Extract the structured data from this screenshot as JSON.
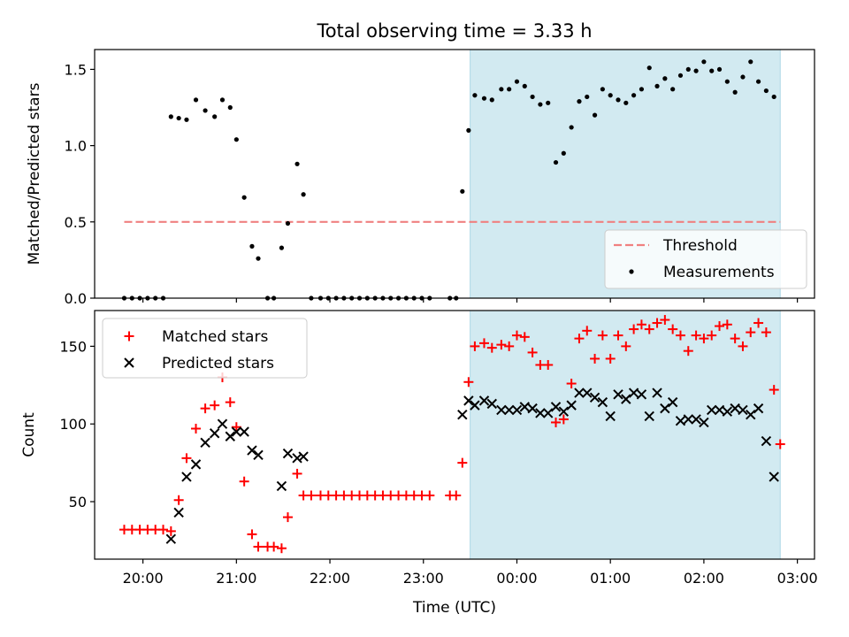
{
  "chart_data": [
    {
      "type": "scatter",
      "title": "Total observing time = 3.33 h",
      "xlabel": "",
      "ylabel": "Matched/Predicted stars",
      "ylim": [
        0,
        1.63
      ],
      "yticks": [
        "0.0",
        "0.5",
        "1.0",
        "1.5"
      ],
      "shaded_region": {
        "x_start": "23:30",
        "x_end": "02:49",
        "color": "#add8e6"
      },
      "threshold": {
        "name": "Threshold",
        "value": 0.5,
        "x_start": "19:48",
        "x_end": "02:49",
        "color": "#f08080"
      },
      "legend": {
        "position": "lower-right",
        "entries": [
          "Threshold",
          "Measurements"
        ]
      },
      "series": [
        {
          "name": "Measurements",
          "color": "#000000",
          "points": [
            [
              "19:48",
              0
            ],
            [
              "19:53",
              0
            ],
            [
              "19:58",
              0
            ],
            [
              "20:03",
              0
            ],
            [
              "20:08",
              0
            ],
            [
              "20:13",
              0
            ],
            [
              "20:18",
              1.19
            ],
            [
              "20:23",
              1.18
            ],
            [
              "20:28",
              1.17
            ],
            [
              "20:34",
              1.3
            ],
            [
              "20:40",
              1.23
            ],
            [
              "20:46",
              1.19
            ],
            [
              "20:51",
              1.3
            ],
            [
              "20:56",
              1.25
            ],
            [
              "21:00",
              1.04
            ],
            [
              "21:05",
              0.66
            ],
            [
              "21:10",
              0.34
            ],
            [
              "21:14",
              0.26
            ],
            [
              "21:20",
              0
            ],
            [
              "21:24",
              0
            ],
            [
              "21:29",
              0.33
            ],
            [
              "21:33",
              0.49
            ],
            [
              "21:39",
              0.88
            ],
            [
              "21:43",
              0.68
            ],
            [
              "21:48",
              0
            ],
            [
              "21:54",
              0
            ],
            [
              "21:59",
              0
            ],
            [
              "22:04",
              0
            ],
            [
              "22:09",
              0
            ],
            [
              "22:14",
              0
            ],
            [
              "22:19",
              0
            ],
            [
              "22:24",
              0
            ],
            [
              "22:29",
              0
            ],
            [
              "22:34",
              0
            ],
            [
              "22:39",
              0
            ],
            [
              "22:44",
              0
            ],
            [
              "22:49",
              0
            ],
            [
              "22:54",
              0
            ],
            [
              "22:59",
              0
            ],
            [
              "23:04",
              0
            ],
            [
              "23:17",
              0
            ],
            [
              "23:21",
              0
            ],
            [
              "23:25",
              0.7
            ],
            [
              "23:29",
              1.1
            ],
            [
              "23:33",
              1.33
            ],
            [
              "23:39",
              1.31
            ],
            [
              "23:44",
              1.3
            ],
            [
              "23:50",
              1.37
            ],
            [
              "23:55",
              1.37
            ],
            [
              "00:00",
              1.42
            ],
            [
              "00:05",
              1.39
            ],
            [
              "00:10",
              1.32
            ],
            [
              "00:15",
              1.27
            ],
            [
              "00:20",
              1.28
            ],
            [
              "00:25",
              0.89
            ],
            [
              "00:30",
              0.95
            ],
            [
              "00:35",
              1.12
            ],
            [
              "00:40",
              1.29
            ],
            [
              "00:45",
              1.32
            ],
            [
              "00:50",
              1.2
            ],
            [
              "00:55",
              1.37
            ],
            [
              "01:00",
              1.33
            ],
            [
              "01:05",
              1.3
            ],
            [
              "01:10",
              1.28
            ],
            [
              "01:15",
              1.33
            ],
            [
              "01:20",
              1.37
            ],
            [
              "01:25",
              1.51
            ],
            [
              "01:30",
              1.39
            ],
            [
              "01:35",
              1.44
            ],
            [
              "01:40",
              1.37
            ],
            [
              "01:45",
              1.46
            ],
            [
              "01:50",
              1.5
            ],
            [
              "01:55",
              1.49
            ],
            [
              "02:00",
              1.55
            ],
            [
              "02:05",
              1.49
            ],
            [
              "02:10",
              1.5
            ],
            [
              "02:15",
              1.42
            ],
            [
              "02:20",
              1.35
            ],
            [
              "02:25",
              1.45
            ],
            [
              "02:30",
              1.55
            ],
            [
              "02:35",
              1.42
            ],
            [
              "02:40",
              1.36
            ],
            [
              "02:45",
              1.32
            ]
          ]
        }
      ]
    },
    {
      "type": "scatter",
      "title": "",
      "xlabel": "Time (UTC)",
      "ylabel": "Count",
      "ylim": [
        13,
        173
      ],
      "yticks": [
        "50",
        "100",
        "150"
      ],
      "xticks": [
        "20:00",
        "21:00",
        "22:00",
        "23:00",
        "00:00",
        "01:00",
        "02:00",
        "03:00"
      ],
      "shaded_region": {
        "x_start": "23:30",
        "x_end": "02:49",
        "color": "#add8e6"
      },
      "legend": {
        "position": "top-left",
        "entries": [
          "Matched stars",
          "Predicted stars"
        ]
      },
      "series": [
        {
          "name": "Matched stars",
          "marker": "plus",
          "color": "#ff0000",
          "points": [
            [
              "19:48",
              32
            ],
            [
              "19:53",
              32
            ],
            [
              "19:58",
              32
            ],
            [
              "20:03",
              32
            ],
            [
              "20:08",
              32
            ],
            [
              "20:13",
              32
            ],
            [
              "20:18",
              31
            ],
            [
              "20:23",
              51
            ],
            [
              "20:28",
              78
            ],
            [
              "20:34",
              97
            ],
            [
              "20:40",
              110
            ],
            [
              "20:46",
              112
            ],
            [
              "20:51",
              130
            ],
            [
              "20:56",
              114
            ],
            [
              "21:00",
              98
            ],
            [
              "21:05",
              63
            ],
            [
              "21:10",
              29
            ],
            [
              "21:14",
              21
            ],
            [
              "21:20",
              21
            ],
            [
              "21:24",
              21
            ],
            [
              "21:29",
              20
            ],
            [
              "21:33",
              40
            ],
            [
              "21:39",
              68
            ],
            [
              "21:43",
              54
            ],
            [
              "21:48",
              54
            ],
            [
              "21:54",
              54
            ],
            [
              "21:59",
              54
            ],
            [
              "22:04",
              54
            ],
            [
              "22:09",
              54
            ],
            [
              "22:14",
              54
            ],
            [
              "22:19",
              54
            ],
            [
              "22:24",
              54
            ],
            [
              "22:29",
              54
            ],
            [
              "22:34",
              54
            ],
            [
              "22:39",
              54
            ],
            [
              "22:44",
              54
            ],
            [
              "22:49",
              54
            ],
            [
              "22:54",
              54
            ],
            [
              "22:59",
              54
            ],
            [
              "23:04",
              54
            ],
            [
              "23:17",
              54
            ],
            [
              "23:21",
              54
            ],
            [
              "23:25",
              75
            ],
            [
              "23:29",
              127
            ],
            [
              "23:33",
              150
            ],
            [
              "23:39",
              152
            ],
            [
              "23:44",
              149
            ],
            [
              "23:50",
              151
            ],
            [
              "23:55",
              150
            ],
            [
              "00:00",
              157
            ],
            [
              "00:05",
              156
            ],
            [
              "00:10",
              146
            ],
            [
              "00:15",
              138
            ],
            [
              "00:20",
              138
            ],
            [
              "00:25",
              101
            ],
            [
              "00:30",
              103
            ],
            [
              "00:35",
              126
            ],
            [
              "00:40",
              155
            ],
            [
              "00:45",
              160
            ],
            [
              "00:50",
              142
            ],
            [
              "00:55",
              157
            ],
            [
              "01:00",
              142
            ],
            [
              "01:05",
              157
            ],
            [
              "01:10",
              150
            ],
            [
              "01:15",
              161
            ],
            [
              "01:20",
              164
            ],
            [
              "01:25",
              161
            ],
            [
              "01:30",
              165
            ],
            [
              "01:35",
              167
            ],
            [
              "01:40",
              161
            ],
            [
              "01:45",
              157
            ],
            [
              "01:50",
              147
            ],
            [
              "01:55",
              157
            ],
            [
              "02:00",
              155
            ],
            [
              "02:05",
              157
            ],
            [
              "02:10",
              163
            ],
            [
              "02:15",
              164
            ],
            [
              "02:20",
              155
            ],
            [
              "02:25",
              150
            ],
            [
              "02:30",
              159
            ],
            [
              "02:35",
              165
            ],
            [
              "02:40",
              159
            ],
            [
              "02:45",
              122
            ],
            [
              "02:49",
              87
            ]
          ]
        },
        {
          "name": "Predicted stars",
          "marker": "x",
          "color": "#000000",
          "points": [
            [
              "20:18",
              26
            ],
            [
              "20:23",
              43
            ],
            [
              "20:28",
              66
            ],
            [
              "20:34",
              74
            ],
            [
              "20:40",
              88
            ],
            [
              "20:46",
              94
            ],
            [
              "20:51",
              100
            ],
            [
              "20:56",
              92
            ],
            [
              "21:00",
              95
            ],
            [
              "21:05",
              95
            ],
            [
              "21:10",
              83
            ],
            [
              "21:14",
              80
            ],
            [
              "21:29",
              60
            ],
            [
              "21:33",
              81
            ],
            [
              "21:39",
              78
            ],
            [
              "21:43",
              79
            ],
            [
              "23:25",
              106
            ],
            [
              "23:29",
              115
            ],
            [
              "23:33",
              112
            ],
            [
              "23:39",
              115
            ],
            [
              "23:44",
              113
            ],
            [
              "23:50",
              109
            ],
            [
              "23:55",
              109
            ],
            [
              "00:00",
              109
            ],
            [
              "00:05",
              111
            ],
            [
              "00:10",
              110
            ],
            [
              "00:15",
              107
            ],
            [
              "00:20",
              107
            ],
            [
              "00:25",
              111
            ],
            [
              "00:30",
              108
            ],
            [
              "00:35",
              112
            ],
            [
              "00:40",
              120
            ],
            [
              "00:45",
              120
            ],
            [
              "00:50",
              117
            ],
            [
              "00:55",
              114
            ],
            [
              "01:00",
              105
            ],
            [
              "01:05",
              119
            ],
            [
              "01:10",
              116
            ],
            [
              "01:15",
              120
            ],
            [
              "01:20",
              119
            ],
            [
              "01:25",
              105
            ],
            [
              "01:30",
              120
            ],
            [
              "01:35",
              110
            ],
            [
              "01:40",
              114
            ],
            [
              "01:45",
              102
            ],
            [
              "01:50",
              103
            ],
            [
              "01:55",
              103
            ],
            [
              "02:00",
              101
            ],
            [
              "02:05",
              109
            ],
            [
              "02:10",
              109
            ],
            [
              "02:15",
              108
            ],
            [
              "02:20",
              110
            ],
            [
              "02:25",
              109
            ],
            [
              "02:30",
              106
            ],
            [
              "02:35",
              110
            ],
            [
              "02:40",
              89
            ],
            [
              "02:45",
              66
            ]
          ]
        }
      ]
    }
  ]
}
